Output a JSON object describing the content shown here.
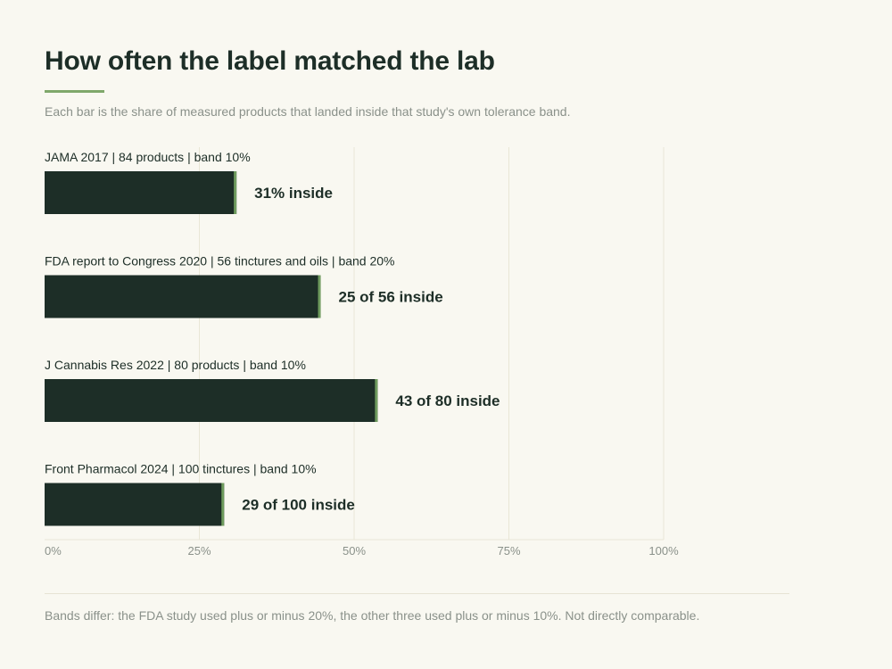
{
  "header": {
    "title": "How often the label matched the lab",
    "subtitle": "Each bar is the share of measured products that landed inside that study's own tolerance band."
  },
  "footer": {
    "note": "Bands differ: the FDA study used plus or minus 20%, the other three used plus or minus 10%. Not directly comparable."
  },
  "colors": {
    "bar": "#1d2e27",
    "bar_edge": "#6f9c5e",
    "accent": "#7fa86b",
    "grid": "#e9e6d6",
    "tick_text": "#8a918a",
    "label_text": "#1d2e27"
  },
  "chart_data": {
    "type": "bar",
    "orientation": "horizontal",
    "categories": [
      "JAMA 2017 | 84 products | band 10%",
      "FDA report to Congress 2020 | 56 tinctures and oils | band 20%",
      "J Cannabis Res 2022 | 80 products | band 10%",
      "Front Pharmacol 2024 | 100 tinctures | band 10%"
    ],
    "values": [
      31,
      44.6,
      53.8,
      29
    ],
    "data_labels": [
      "31% inside",
      "25 of 56 inside",
      "43 of 80 inside",
      "29 of 100 inside"
    ],
    "xlim": [
      0,
      100
    ],
    "xticks": [
      0,
      25,
      50,
      75,
      100
    ],
    "xtick_labels": [
      "0%",
      "25%",
      "50%",
      "75%",
      "100%"
    ],
    "grid": true,
    "xlabel": "",
    "ylabel": ""
  }
}
